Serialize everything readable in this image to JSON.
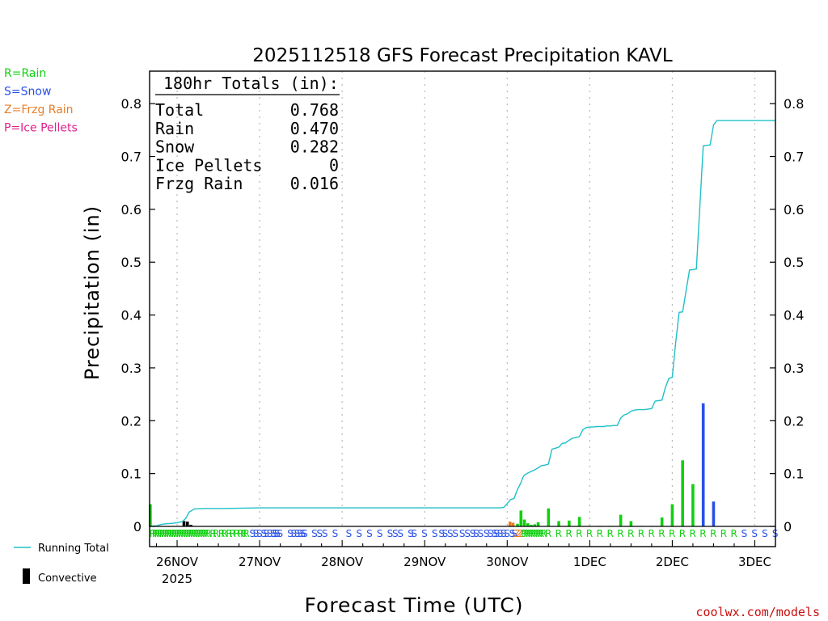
{
  "chart_data": {
    "type": "bar",
    "title": "2025112518 GFS Forecast Precipitation KAVL",
    "xlabel": "Forecast Time (UTC)",
    "ylabel": "Precipitation (in)",
    "ylim": [
      0,
      0.85
    ],
    "y_ticks": [
      "0",
      "0.1",
      "0.2",
      "0.3",
      "0.4",
      "0.5",
      "0.6",
      "0.7",
      "0.8"
    ],
    "x_range_hours": [
      -2,
      180
    ],
    "x_ticks": [
      {
        "label": "26NOV",
        "hour": 6
      },
      {
        "label": "27NOV",
        "hour": 30
      },
      {
        "label": "28NOV",
        "hour": 54
      },
      {
        "label": "29NOV",
        "hour": 78
      },
      {
        "label": "30NOV",
        "hour": 102
      },
      {
        "label": "1DEC",
        "hour": 126
      },
      {
        "label": "2DEC",
        "hour": 150
      },
      {
        "label": "3DEC",
        "hour": 174
      }
    ],
    "year_label": "2025",
    "grid": "vertical dotted at day boundaries",
    "totals": {
      "header": "180hr Totals (in):",
      "rows": [
        {
          "label": "Total",
          "value": "0.768"
        },
        {
          "label": "Rain",
          "value": "0.470"
        },
        {
          "label": "Snow",
          "value": "0.282"
        },
        {
          "label": "Ice Pellets",
          "value": "0"
        },
        {
          "label": "Frzg Rain",
          "value": "0.016"
        }
      ]
    },
    "legend": [
      {
        "label": "R=Rain",
        "color": "#10d010"
      },
      {
        "label": "S=Snow",
        "color": "#2850e8"
      },
      {
        "label": "Z=Frzg Rain",
        "color": "#e87e28"
      },
      {
        "label": "P=Ice Pellets",
        "color": "#e0208c"
      }
    ],
    "bottom_legend": {
      "running_total": "Running Total",
      "convective": "Convective"
    },
    "colors": {
      "rain": "#10d010",
      "snow": "#2850e8",
      "frzg": "#e87e28",
      "ice": "#e0208c",
      "convective": "#000000",
      "running_total": "#20c0c8"
    },
    "series": [
      {
        "name": "Precipitation (3hr)",
        "bars": [
          {
            "hour": -1.8,
            "value": 0.042,
            "type": "R"
          },
          {
            "hour": 8,
            "value": 0.01,
            "type": "C"
          },
          {
            "hour": 9,
            "value": 0.009,
            "type": "C"
          },
          {
            "hour": 10,
            "value": 0.003,
            "type": "C"
          },
          {
            "hour": 11,
            "value": 0.001,
            "type": "R"
          },
          {
            "hour": 102.8,
            "value": 0.009,
            "type": "Z"
          },
          {
            "hour": 103.7,
            "value": 0.007,
            "type": "Z"
          },
          {
            "hour": 105,
            "value": 0.005,
            "type": "R"
          },
          {
            "hour": 106,
            "value": 0.03,
            "type": "R"
          },
          {
            "hour": 107,
            "value": 0.013,
            "type": "R"
          },
          {
            "hour": 108,
            "value": 0.006,
            "type": "R"
          },
          {
            "hour": 109,
            "value": 0.003,
            "type": "R"
          },
          {
            "hour": 110,
            "value": 0.004,
            "type": "R"
          },
          {
            "hour": 111,
            "value": 0.008,
            "type": "R"
          },
          {
            "hour": 114,
            "value": 0.034,
            "type": "R"
          },
          {
            "hour": 117,
            "value": 0.01,
            "type": "R"
          },
          {
            "hour": 120,
            "value": 0.011,
            "type": "R"
          },
          {
            "hour": 123,
            "value": 0.018,
            "type": "R"
          },
          {
            "hour": 126,
            "value": 0.001,
            "type": "R"
          },
          {
            "hour": 129,
            "value": 0.001,
            "type": "R"
          },
          {
            "hour": 132,
            "value": 0.001,
            "type": "R"
          },
          {
            "hour": 135,
            "value": 0.022,
            "type": "R"
          },
          {
            "hour": 138,
            "value": 0.01,
            "type": "R"
          },
          {
            "hour": 141,
            "value": 0.001,
            "type": "R"
          },
          {
            "hour": 144,
            "value": 0.001,
            "type": "R"
          },
          {
            "hour": 147,
            "value": 0.017,
            "type": "R"
          },
          {
            "hour": 150,
            "value": 0.042,
            "type": "R"
          },
          {
            "hour": 153,
            "value": 0.125,
            "type": "R"
          },
          {
            "hour": 156,
            "value": 0.08,
            "type": "R"
          },
          {
            "hour": 159,
            "value": 0.233,
            "type": "S"
          },
          {
            "hour": 162,
            "value": 0.047,
            "type": "S"
          }
        ]
      },
      {
        "name": "Running Total",
        "x": [
          -2,
          0,
          1.5,
          3,
          5,
          6,
          7.5,
          8.5,
          9.5,
          11,
          14,
          17,
          20,
          30,
          40,
          50,
          60,
          70,
          80,
          90,
          100,
          101,
          102,
          103,
          104,
          105,
          106,
          106.5,
          107,
          108,
          109,
          110,
          111,
          112,
          113,
          114,
          115,
          116,
          117,
          118,
          119,
          120,
          121,
          122,
          123,
          124,
          125,
          126,
          127,
          128,
          129,
          130,
          131,
          132,
          133,
          134,
          135,
          136,
          137,
          138,
          139,
          140,
          141,
          142,
          143,
          144,
          145,
          146,
          147,
          148,
          149,
          150,
          151,
          152,
          153,
          154,
          155,
          156,
          157,
          158,
          159,
          160,
          161,
          162,
          163,
          170,
          180
        ],
        "y": [
          0.0,
          0.001,
          0.004,
          0.005,
          0.006,
          0.007,
          0.009,
          0.015,
          0.027,
          0.033,
          0.034,
          0.034,
          0.034,
          0.035,
          0.035,
          0.035,
          0.035,
          0.035,
          0.035,
          0.035,
          0.035,
          0.036,
          0.043,
          0.051,
          0.053,
          0.07,
          0.083,
          0.092,
          0.097,
          0.101,
          0.104,
          0.107,
          0.111,
          0.115,
          0.116,
          0.118,
          0.146,
          0.148,
          0.15,
          0.157,
          0.158,
          0.163,
          0.167,
          0.168,
          0.17,
          0.183,
          0.187,
          0.188,
          0.188,
          0.189,
          0.189,
          0.189,
          0.19,
          0.19,
          0.191,
          0.191,
          0.205,
          0.211,
          0.213,
          0.218,
          0.22,
          0.221,
          0.221,
          0.221,
          0.222,
          0.223,
          0.237,
          0.238,
          0.239,
          0.263,
          0.28,
          0.282,
          0.349,
          0.405,
          0.406,
          0.445,
          0.485,
          0.486,
          0.487,
          0.602,
          0.72,
          0.721,
          0.722,
          0.76,
          0.768,
          0.768,
          0.768
        ]
      }
    ],
    "ptype_markers": {
      "hours": [
        -2,
        -1.3,
        -0.6,
        0.1,
        0.8,
        1.5,
        2.2,
        2.9,
        3.6,
        4.3,
        5.0,
        5.7,
        6.4,
        7.1,
        7.8,
        8.5,
        9.2,
        9.9,
        10.6,
        11.3,
        12.0,
        12.7,
        13.4,
        14.1,
        15.5,
        16.4,
        18.0,
        18.8,
        20.2,
        21.2,
        22.4,
        23.6,
        24.4,
        25.2,
        27,
        28,
        29,
        30.3,
        31,
        32,
        33,
        33.6,
        34.2,
        35,
        38,
        39,
        40,
        40.8,
        41.6,
        42.2,
        45,
        46.5,
        48,
        51,
        55,
        58,
        61,
        64,
        67,
        68.5,
        70,
        73,
        74,
        77,
        80,
        82,
        83,
        84.5,
        86,
        88,
        89.5,
        91,
        92,
        93.3,
        95,
        96.2,
        97.4,
        98,
        99,
        100,
        101,
        102.5,
        103.2,
        103.9,
        104.7,
        105.3,
        106,
        106.7,
        107.4,
        108.1,
        108.8,
        109.5,
        110.2,
        110.9,
        111.6,
        113,
        116,
        119,
        122,
        125,
        128,
        131,
        134,
        137,
        140,
        143,
        146,
        149,
        152,
        155,
        158,
        161,
        164,
        167,
        170,
        173,
        176,
        179
      ],
      "types": "RRRRRRRRRRRRRRRRRRRRRRRRRRRRRRRRRRSSSSSSSSSSSSSSSSSSSSSSSSSSSSSSSSSSSSSSSSSSSSSSSSSZZZRRRRRRRRRRRRRRRRRRRRRRRRRRRRSSSSSSSS"
    }
  },
  "credit": "coolwx.com/models"
}
